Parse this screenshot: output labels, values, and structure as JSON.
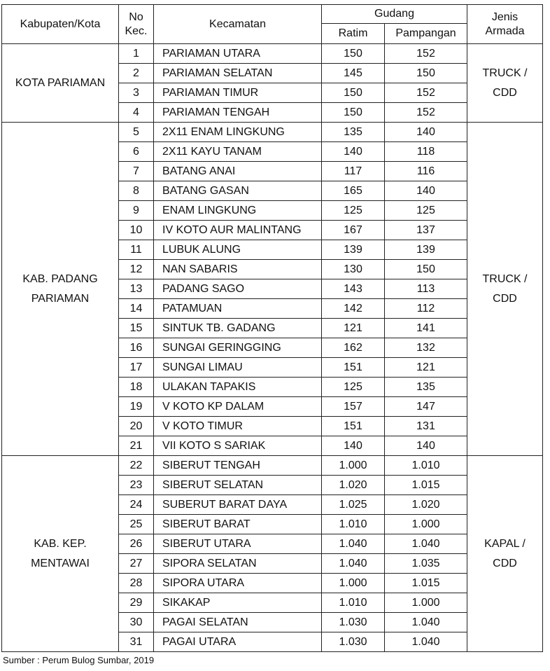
{
  "headers": {
    "kabupaten": "Kabupaten/Kota",
    "no_line1": "No",
    "no_line2": "Kec.",
    "kecamatan": "Kecamatan",
    "gudang": "Gudang",
    "ratim": "Ratim",
    "pampangan": "Pampangan",
    "armada_line1": "Jenis",
    "armada_line2": "Armada"
  },
  "groups": [
    {
      "name_lines": [
        "KOTA PARIAMAN"
      ],
      "armada_lines": [
        "TRUCK /",
        "CDD"
      ],
      "rows": [
        [
          "1",
          "PARIAMAN UTARA",
          "150",
          "152"
        ],
        [
          "2",
          "PARIAMAN SELATAN",
          "145",
          "150"
        ],
        [
          "3",
          "PARIAMAN TIMUR",
          "150",
          "152"
        ],
        [
          "4",
          "PARIAMAN TENGAH",
          "150",
          "152"
        ]
      ]
    },
    {
      "name_lines": [
        "KAB. PADANG",
        "PARIAMAN"
      ],
      "armada_lines": [
        "TRUCK /",
        "CDD"
      ],
      "rows": [
        [
          "5",
          "2X11 ENAM LINGKUNG",
          "135",
          "140"
        ],
        [
          "6",
          "2X11 KAYU TANAM",
          "140",
          "118"
        ],
        [
          "7",
          "BATANG ANAI",
          "117",
          "116"
        ],
        [
          "8",
          "BATANG GASAN",
          "165",
          "140"
        ],
        [
          "9",
          "ENAM LINGKUNG",
          "125",
          "125"
        ],
        [
          "10",
          "IV KOTO AUR MALINTANG",
          "167",
          "137"
        ],
        [
          "11",
          "LUBUK ALUNG",
          "139",
          "139"
        ],
        [
          "12",
          "NAN SABARIS",
          "130",
          "150"
        ],
        [
          "13",
          "PADANG SAGO",
          "143",
          "113"
        ],
        [
          "14",
          "PATAMUAN",
          "142",
          "112"
        ],
        [
          "15",
          "SINTUK TB. GADANG",
          "121",
          "141"
        ],
        [
          "16",
          "SUNGAI GERINGGING",
          "162",
          "132"
        ],
        [
          "17",
          "SUNGAI LIMAU",
          "151",
          "121"
        ],
        [
          "18",
          "ULAKAN TAPAKIS",
          "125",
          "135"
        ],
        [
          "19",
          "V KOTO KP DALAM",
          "157",
          "147"
        ],
        [
          "20",
          "V KOTO TIMUR",
          "151",
          "131"
        ],
        [
          "21",
          "VII KOTO S SARIAK",
          "140",
          "140"
        ]
      ]
    },
    {
      "name_lines": [
        "KAB. KEP.",
        "MENTAWAI"
      ],
      "armada_lines": [
        "KAPAL /",
        "CDD"
      ],
      "rows": [
        [
          "22",
          "SIBERUT TENGAH",
          "1.000",
          "1.010"
        ],
        [
          "23",
          "SIBERUT SELATAN",
          "1.020",
          "1.015"
        ],
        [
          "24",
          "SUBERUT BARAT DAYA",
          "1.025",
          "1.020"
        ],
        [
          "25",
          "SIBERUT BARAT",
          "1.010",
          "1.000"
        ],
        [
          "26",
          "SIBERUT UTARA",
          "1.040",
          "1.040"
        ],
        [
          "27",
          "SIPORA SELATAN",
          "1.040",
          "1.035"
        ],
        [
          "28",
          "SIPORA UTARA",
          "1.000",
          "1.015"
        ],
        [
          "29",
          "SIKAKAP",
          "1.010",
          "1.000"
        ],
        [
          "30",
          "PAGAI SELATAN",
          "1.030",
          "1.040"
        ],
        [
          "31",
          "PAGAI UTARA",
          "1.030",
          "1.040"
        ]
      ]
    }
  ],
  "source": "Sumber : Perum Bulog Sumbar, 2019"
}
